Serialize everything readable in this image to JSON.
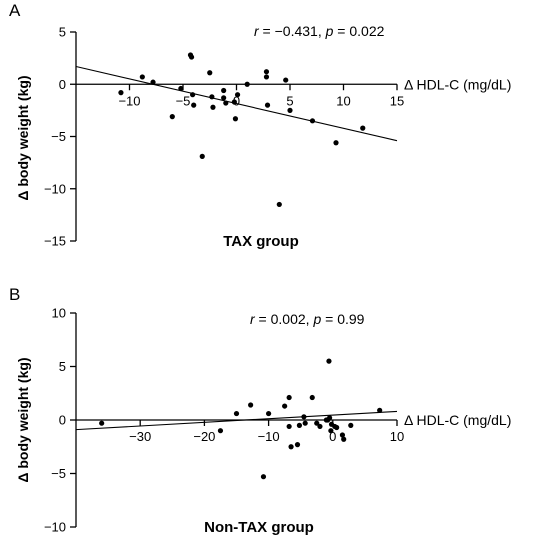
{
  "chart_data": [
    {
      "type": "scatter",
      "panel_label": "A",
      "group_label": "TAX group",
      "xlabel": "Δ HDL-C (mg/dL)",
      "ylabel": "Δ body weight (kg)",
      "annotation": {
        "r_sym": "r",
        "r_val": " = −0.431, ",
        "p_sym": "p",
        "p_val": " = 0.022"
      },
      "xlim": [
        -15,
        15
      ],
      "ylim": [
        -15,
        5
      ],
      "x_ticks": [
        -10,
        -5,
        0,
        5,
        10,
        15
      ],
      "x_tick_labels": [
        "−10",
        "−5",
        "0",
        "5",
        "10",
        "15"
      ],
      "y_ticks": [
        5,
        0,
        -5,
        -10,
        -15
      ],
      "y_tick_labels": [
        "5",
        "0",
        "−5",
        "−10",
        "−15"
      ],
      "grid": false,
      "trendline": {
        "x": [
          -15,
          15
        ],
        "y": [
          1.7,
          -5.4
        ]
      },
      "points": [
        {
          "x": -10.8,
          "y": -0.8
        },
        {
          "x": -8.8,
          "y": 0.7
        },
        {
          "x": -7.8,
          "y": 0.2
        },
        {
          "x": -6.0,
          "y": -3.1
        },
        {
          "x": -5.2,
          "y": -0.4
        },
        {
          "x": -4.3,
          "y": 2.8
        },
        {
          "x": -4.2,
          "y": 2.6
        },
        {
          "x": -4.1,
          "y": -1.0
        },
        {
          "x": -4.0,
          "y": -2.0
        },
        {
          "x": -3.2,
          "y": -6.9
        },
        {
          "x": -2.5,
          "y": 1.1
        },
        {
          "x": -2.3,
          "y": -1.2
        },
        {
          "x": -2.2,
          "y": -2.2
        },
        {
          "x": -1.2,
          "y": -1.3
        },
        {
          "x": -1.2,
          "y": -0.6
        },
        {
          "x": -1.0,
          "y": -1.8
        },
        {
          "x": -0.2,
          "y": -1.7
        },
        {
          "x": -0.1,
          "y": -3.3
        },
        {
          "x": 0.1,
          "y": -1.0
        },
        {
          "x": 1.0,
          "y": 0.0
        },
        {
          "x": 2.8,
          "y": 1.2
        },
        {
          "x": 2.8,
          "y": 0.7
        },
        {
          "x": 2.9,
          "y": -2.0
        },
        {
          "x": 4.0,
          "y": -11.5
        },
        {
          "x": 4.6,
          "y": 0.4
        },
        {
          "x": 5.0,
          "y": -2.5
        },
        {
          "x": 7.1,
          "y": -3.5
        },
        {
          "x": 9.3,
          "y": -5.6
        },
        {
          "x": 11.8,
          "y": -4.2
        }
      ]
    },
    {
      "type": "scatter",
      "panel_label": "B",
      "group_label": "Non-TAX group",
      "xlabel": "Δ HDL-C (mg/dL)",
      "ylabel": "Δ body weight (kg)",
      "annotation": {
        "r_sym": "r",
        "r_val": " = 0.002,  ",
        "p_sym": "p",
        "p_val": " = 0.99"
      },
      "xlim": [
        -40,
        10
      ],
      "ylim": [
        -10,
        10
      ],
      "x_ticks": [
        -30,
        -20,
        -10,
        0,
        10
      ],
      "x_tick_labels": [
        "−30",
        "−20",
        "−10",
        "0",
        "10"
      ],
      "y_ticks": [
        10,
        5,
        0,
        -5,
        -10
      ],
      "y_tick_labels": [
        "10",
        "5",
        "0",
        "−5",
        "−10"
      ],
      "grid": false,
      "trendline": {
        "x": [
          -40,
          10
        ],
        "y": [
          -0.9,
          0.8
        ]
      },
      "points": [
        {
          "x": -36.0,
          "y": -0.3
        },
        {
          "x": -17.5,
          "y": -1.0
        },
        {
          "x": -15.0,
          "y": 0.6
        },
        {
          "x": -12.8,
          "y": 1.4
        },
        {
          "x": -10.8,
          "y": -5.3
        },
        {
          "x": -10.0,
          "y": 0.6
        },
        {
          "x": -7.5,
          "y": 1.3
        },
        {
          "x": -6.8,
          "y": 2.1
        },
        {
          "x": -6.8,
          "y": -0.6
        },
        {
          "x": -6.5,
          "y": -2.5
        },
        {
          "x": -5.5,
          "y": -2.3
        },
        {
          "x": -5.2,
          "y": -0.5
        },
        {
          "x": -4.5,
          "y": 0.3
        },
        {
          "x": -4.3,
          "y": -0.3
        },
        {
          "x": -3.2,
          "y": 2.1
        },
        {
          "x": -2.5,
          "y": -0.3
        },
        {
          "x": -2.0,
          "y": -0.6
        },
        {
          "x": -1.0,
          "y": 0.0
        },
        {
          "x": -0.8,
          "y": 0.0
        },
        {
          "x": -0.6,
          "y": 5.5
        },
        {
          "x": -0.5,
          "y": 0.2
        },
        {
          "x": -0.3,
          "y": -1.0
        },
        {
          "x": -0.2,
          "y": -0.4
        },
        {
          "x": 0.3,
          "y": -0.6
        },
        {
          "x": 0.6,
          "y": -0.7
        },
        {
          "x": 1.5,
          "y": -1.4
        },
        {
          "x": 1.7,
          "y": -1.8
        },
        {
          "x": 2.8,
          "y": -0.5
        },
        {
          "x": 7.3,
          "y": 0.9
        }
      ]
    }
  ]
}
